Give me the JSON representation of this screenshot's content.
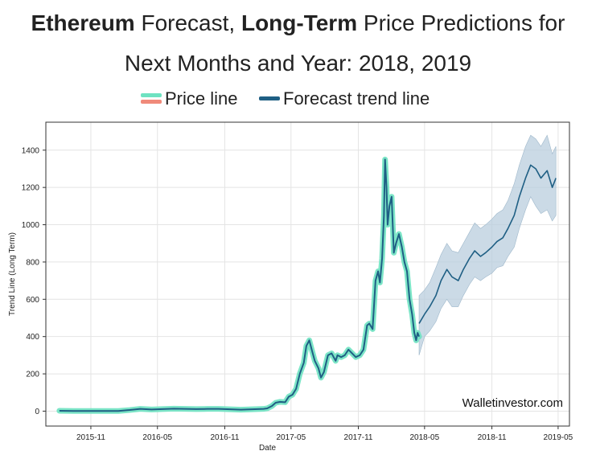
{
  "title": {
    "line1": {
      "b1": "Ethereum",
      "t1": " Forecast, ",
      "b2": "Long-Term",
      "t2": " Price Predictions for"
    },
    "line2": "Next Months and Year: 2018, 2019"
  },
  "legend": {
    "price_label": "Price line",
    "forecast_label": "Forecast trend line"
  },
  "watermark": "Walletinvestor.com",
  "colors": {
    "price_line": "#2fcf9f",
    "price_line_halo": "#6ee2c1",
    "price_line_red": "#f08a7a",
    "trend_line": "#1f5f84",
    "band": "#b9cedd",
    "band_edge": "#9fb8cb",
    "grid": "#e4e4e4",
    "axis": "#333333"
  },
  "chart_data": {
    "type": "line",
    "title": "",
    "xlabel": "Date",
    "ylabel": "Trend Line (Long Term)",
    "ylim": [
      -80,
      1550
    ],
    "xlim": [
      "2015-07-01",
      "2019-06-01"
    ],
    "xticks": [
      "2015-11",
      "2016-05",
      "2016-11",
      "2017-05",
      "2017-11",
      "2018-05",
      "2018-11",
      "2019-05"
    ],
    "yticks": [
      0,
      200,
      400,
      600,
      800,
      1000,
      1200,
      1400
    ],
    "grid": true,
    "legend_position": "top",
    "series": [
      {
        "name": "Price line",
        "kind": "history",
        "x": [
          "2015-08-07",
          "2015-09-15",
          "2015-11-01",
          "2015-12-15",
          "2016-01-15",
          "2016-02-15",
          "2016-03-15",
          "2016-04-15",
          "2016-05-15",
          "2016-06-15",
          "2016-07-15",
          "2016-08-15",
          "2016-09-15",
          "2016-10-15",
          "2016-11-15",
          "2016-12-15",
          "2017-01-15",
          "2017-02-15",
          "2017-02-25",
          "2017-03-10",
          "2017-03-20",
          "2017-04-01",
          "2017-04-15",
          "2017-04-25",
          "2017-05-05",
          "2017-05-15",
          "2017-05-25",
          "2017-06-05",
          "2017-06-12",
          "2017-06-20",
          "2017-06-28",
          "2017-07-05",
          "2017-07-15",
          "2017-07-22",
          "2017-07-30",
          "2017-08-10",
          "2017-08-20",
          "2017-08-31",
          "2017-09-05",
          "2017-09-15",
          "2017-09-25",
          "2017-10-05",
          "2017-10-15",
          "2017-10-25",
          "2017-11-05",
          "2017-11-15",
          "2017-11-25",
          "2017-12-01",
          "2017-12-10",
          "2017-12-18",
          "2017-12-25",
          "2017-12-30",
          "2018-01-05",
          "2018-01-10",
          "2018-01-13",
          "2018-01-17",
          "2018-01-20",
          "2018-01-25",
          "2018-01-31",
          "2018-02-06",
          "2018-02-12",
          "2018-02-20",
          "2018-02-28",
          "2018-03-07",
          "2018-03-14",
          "2018-03-21",
          "2018-03-28",
          "2018-04-03",
          "2018-04-08",
          "2018-04-12",
          "2018-04-16"
        ],
        "y": [
          2,
          1,
          1,
          1,
          1,
          6,
          12,
          9,
          11,
          13,
          12,
          11,
          12,
          12,
          10,
          8,
          10,
          12,
          15,
          28,
          45,
          50,
          48,
          78,
          88,
          120,
          200,
          260,
          350,
          380,
          320,
          270,
          230,
          180,
          210,
          300,
          310,
          270,
          300,
          290,
          300,
          330,
          310,
          290,
          300,
          330,
          460,
          470,
          440,
          700,
          750,
          690,
          820,
          1050,
          1350,
          1200,
          1000,
          1100,
          1150,
          850,
          900,
          950,
          880,
          800,
          750,
          600,
          520,
          420,
          380,
          420,
          400
        ]
      },
      {
        "name": "Forecast trend line",
        "kind": "forecast",
        "x": [
          "2018-04-16",
          "2018-05-01",
          "2018-05-15",
          "2018-06-01",
          "2018-06-15",
          "2018-07-01",
          "2018-07-15",
          "2018-08-01",
          "2018-08-15",
          "2018-09-01",
          "2018-09-15",
          "2018-10-01",
          "2018-10-15",
          "2018-11-01",
          "2018-11-15",
          "2018-12-01",
          "2018-12-15",
          "2019-01-01",
          "2019-01-15",
          "2019-02-01",
          "2019-02-15",
          "2019-03-01",
          "2019-03-15",
          "2019-04-01",
          "2019-04-15",
          "2019-04-25"
        ],
        "y": [
          470,
          520,
          560,
          620,
          700,
          760,
          720,
          700,
          760,
          820,
          860,
          830,
          850,
          880,
          910,
          930,
          980,
          1050,
          1150,
          1250,
          1320,
          1300,
          1250,
          1290,
          1200,
          1250
        ],
        "band_lower": [
          300,
          400,
          430,
          480,
          550,
          600,
          560,
          560,
          620,
          680,
          720,
          700,
          720,
          740,
          770,
          780,
          830,
          880,
          980,
          1080,
          1150,
          1100,
          1060,
          1080,
          1020,
          1050
        ],
        "band_upper": [
          620,
          650,
          690,
          770,
          840,
          900,
          860,
          850,
          900,
          960,
          1010,
          980,
          1000,
          1030,
          1060,
          1080,
          1130,
          1220,
          1320,
          1420,
          1480,
          1460,
          1420,
          1480,
          1380,
          1420
        ]
      }
    ]
  }
}
